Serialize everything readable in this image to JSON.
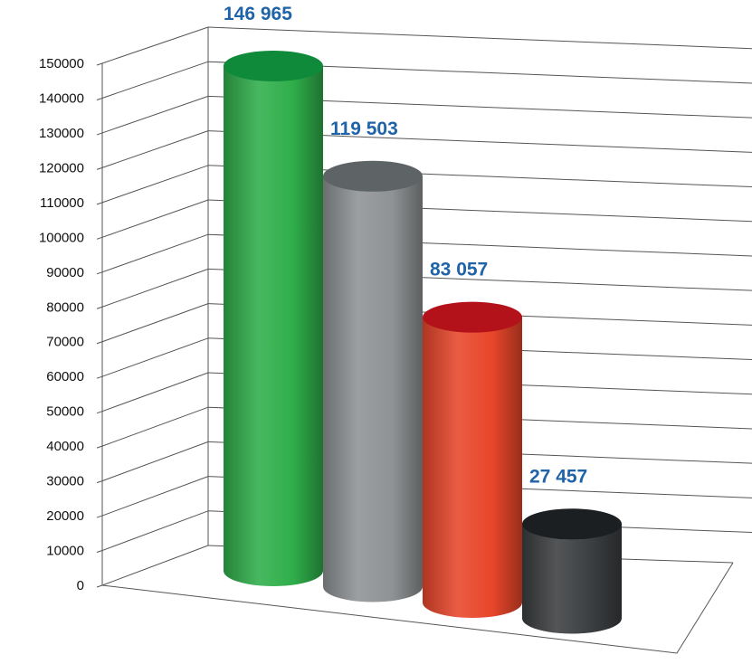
{
  "chart_data": {
    "type": "bar",
    "style": "3d-cylinder",
    "categories": [
      "",
      "",
      "",
      ""
    ],
    "values": [
      146965,
      119503,
      83057,
      27457
    ],
    "data_labels": [
      "146 965",
      "119 503",
      "83 057",
      "27 457"
    ],
    "title": "",
    "xlabel": "",
    "ylabel": "",
    "ylim": [
      0,
      150000
    ],
    "y_ticks": [
      0,
      10000,
      20000,
      30000,
      40000,
      50000,
      60000,
      70000,
      80000,
      90000,
      100000,
      110000,
      120000,
      130000,
      140000,
      150000
    ],
    "y_tick_labels": [
      "0",
      "10000",
      "20000",
      "30000",
      "40000",
      "50000",
      "60000",
      "70000",
      "80000",
      "90000",
      "100000",
      "110000",
      "120000",
      "130000",
      "140000",
      "150000"
    ],
    "grid": true,
    "legend": "none",
    "bar_colors": [
      "#2fae4a",
      "#8f9294",
      "#e8462a",
      "#3b3e40"
    ],
    "bar_top_colors": [
      "#0f8a3a",
      "#5e6466",
      "#b3121a",
      "#1c1f21"
    ],
    "data_label_color": "#1f63a8",
    "grid_color": "#555555"
  }
}
